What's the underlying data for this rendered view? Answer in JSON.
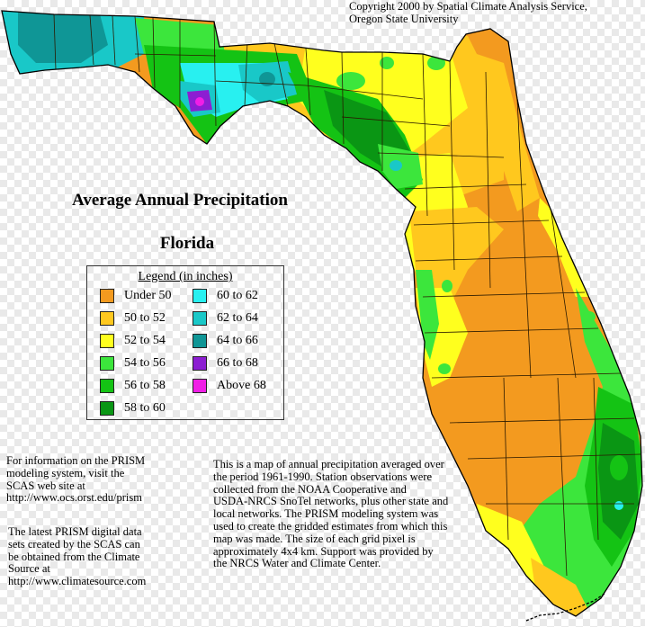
{
  "copyright": [
    "Copyright 2000 by Spatial Climate Analysis Service,",
    "Oregon State University"
  ],
  "title": "Average Annual Precipitation",
  "state": "Florida",
  "legend": {
    "title": "Legend (in inches)",
    "items": [
      {
        "label": "Under 50",
        "color": "#f39a1f"
      },
      {
        "label": "50 to 52",
        "color": "#ffc81e"
      },
      {
        "label": "52 to 54",
        "color": "#ffff1e"
      },
      {
        "label": "54 to 56",
        "color": "#3ce63c"
      },
      {
        "label": "56 to 58",
        "color": "#14c314"
      },
      {
        "label": "58 to 60",
        "color": "#0a9614"
      },
      {
        "label": "60 to 62",
        "color": "#28f0f0"
      },
      {
        "label": "62 to 64",
        "color": "#19c8c8"
      },
      {
        "label": "64 to 66",
        "color": "#0f9696"
      },
      {
        "label": "66 to 68",
        "color": "#8c1ed2"
      },
      {
        "label": "Above 68",
        "color": "#f01ee6"
      }
    ]
  },
  "info_prism": [
    "For information on the PRISM",
    "modeling system, visit the",
    "SCAS web site at",
    "http://www.ocs.orst.edu/prism"
  ],
  "info_latest": [
    "The latest PRISM digital data",
    "sets created by the SCAS can",
    "be obtained from the Climate",
    "Source at",
    "http://www.climatesource.com"
  ],
  "info_map": [
    "This is a map of annual precipitation averaged over",
    "the period 1961-1990. Station observations were",
    "collected from the NOAA Cooperative and",
    "USDA-NRCS SnoTel networks, plus other state and",
    "local networks.  The PRISM modeling system was",
    "used to create the gridded estimates from which this",
    "map was made.  The size of each grid pixel is",
    "approximately 4x4 km.  Support was provided by",
    "the NRCS Water and Climate Center."
  ]
}
